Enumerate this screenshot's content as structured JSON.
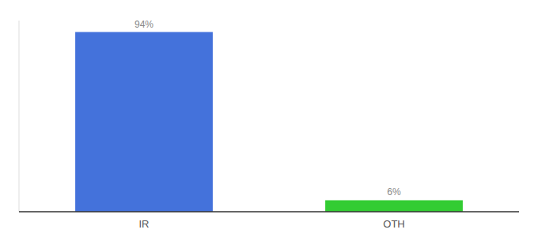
{
  "chart_data": {
    "type": "bar",
    "categories": [
      "IR",
      "OTH"
    ],
    "values": [
      94,
      6
    ],
    "value_labels": [
      "94%",
      "6%"
    ],
    "colors": [
      "#4472db",
      "#33cc33"
    ],
    "ylim": [
      0,
      100
    ],
    "data_labels": true,
    "tick_labels": "x",
    "grid": false
  }
}
